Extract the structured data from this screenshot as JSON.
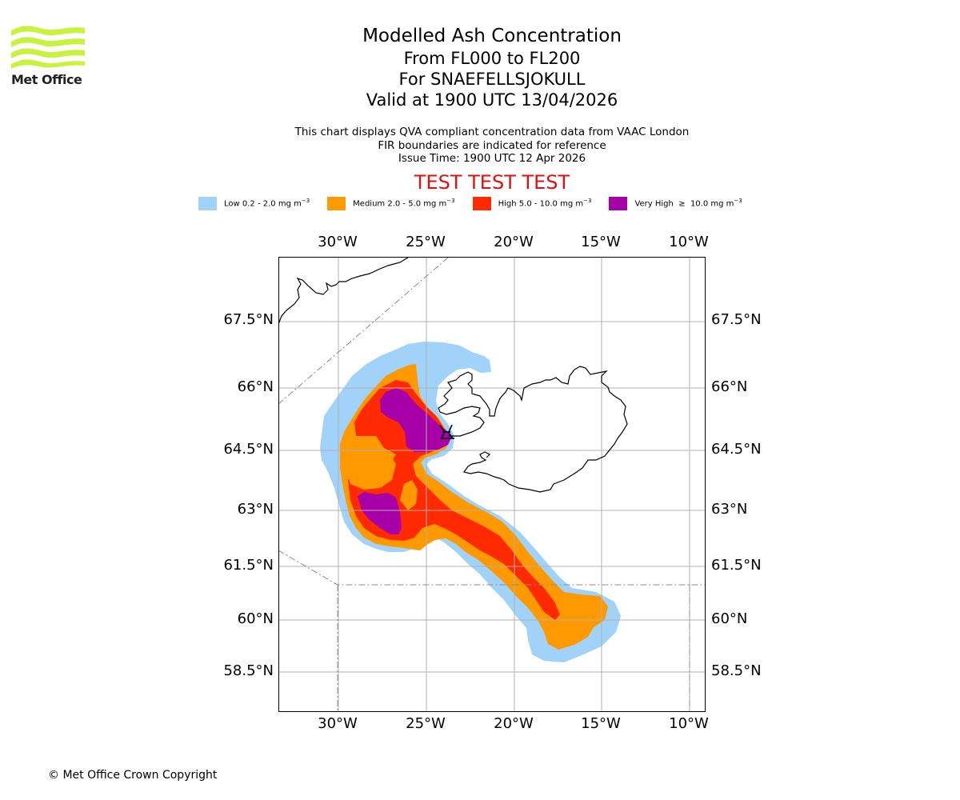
{
  "logo": {
    "name": "Met Office",
    "text": "Met Office"
  },
  "header": {
    "title": "Modelled Ash Concentration",
    "level_range": "From FL000 to FL200",
    "volcano": "For SNAEFELLSJOKULL",
    "valid_time": "Valid at 1900 UTC 13/04/2026"
  },
  "subtitle": {
    "line1": "This chart displays QVA compliant concentration data from VAAC London",
    "line2": "FIR boundaries are indicated for reference",
    "issue_time": "Issue Time: 1900 UTC 12 Apr 2026"
  },
  "test_banner": "TEST TEST TEST",
  "legend": [
    {
      "label": "Low 0.2 - 2.0 mg m",
      "unit_exp": "−3",
      "color": "#a0d2fa"
    },
    {
      "label": "Medium 2.0 - 5.0 mg m",
      "unit_exp": "−3",
      "color": "#ff9900"
    },
    {
      "label": "High 5.0 - 10.0 mg m",
      "unit_exp": "−3",
      "color": "#ff2a00"
    },
    {
      "label": "Very High  ≥  10.0 mg m",
      "unit_exp": "−3",
      "color": "#a800a8"
    }
  ],
  "map": {
    "lon_ticks": [
      "30°W",
      "25°W",
      "20°W",
      "15°W",
      "10°W"
    ],
    "lat_ticks": [
      "67.5°N",
      "66°N",
      "64.5°N",
      "63°N",
      "61.5°N",
      "60°N",
      "58.5°N"
    ],
    "volcano_marker": "volcano-icon",
    "colors": {
      "coast": "#000000",
      "grid": "#b0b0b0",
      "fir": "#8c8c8c"
    }
  },
  "footer": "© Met Office Crown Copyright"
}
